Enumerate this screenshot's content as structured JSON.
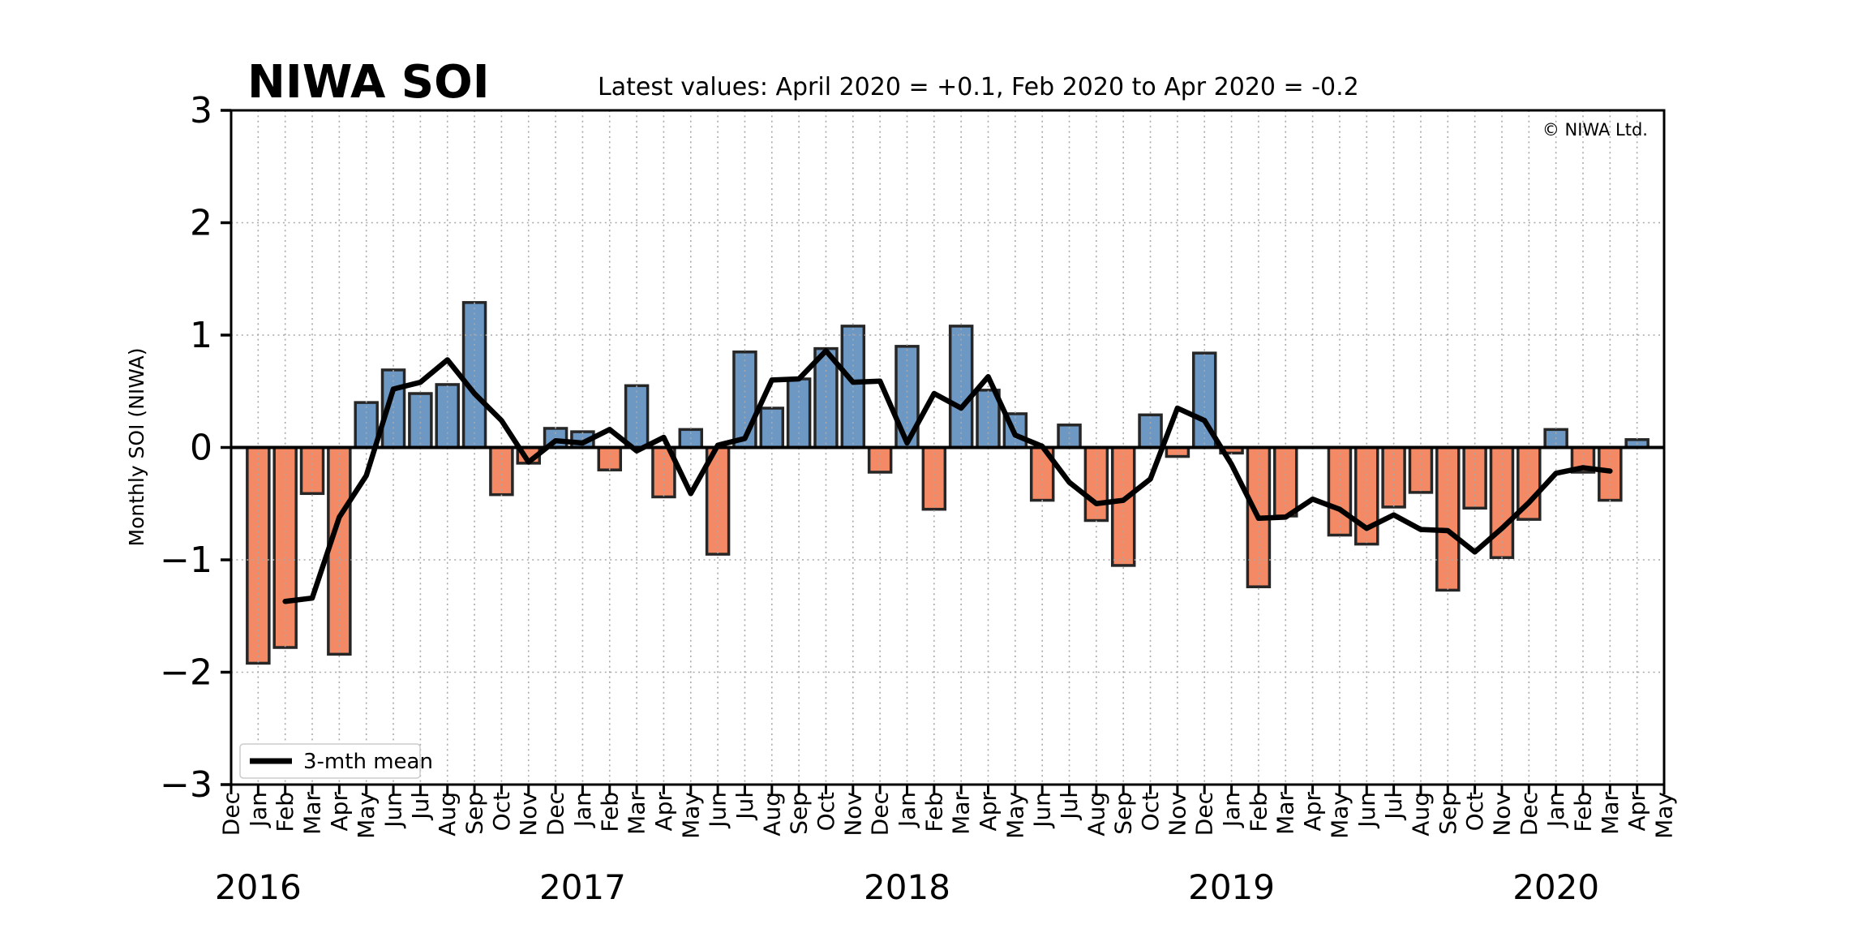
{
  "chart_data": {
    "type": "bar+line",
    "title": "NIWA SOI",
    "subtitle": "Latest values: April 2020 = +0.1, Feb 2020 to Apr 2020 = -0.2",
    "copyright": "© NIWA Ltd.",
    "ylabel": "Monthly SOI (NIWA)",
    "ylim": [
      -3,
      3
    ],
    "grid": "dotted",
    "grid_color": "#a8a8a8",
    "legend": {
      "label": "3-mth mean",
      "position": "bottom-left"
    },
    "yticks": [
      {
        "value": 3,
        "label": "3"
      },
      {
        "value": 2,
        "label": "2"
      },
      {
        "value": 1,
        "label": "1"
      },
      {
        "value": 0,
        "label": "0"
      },
      {
        "value": -1,
        "label": "−1"
      },
      {
        "value": -2,
        "label": "−2"
      },
      {
        "value": -3,
        "label": "−3"
      }
    ],
    "x_months": [
      "Dec",
      "Jan",
      "Feb",
      "Mar",
      "Apr",
      "May",
      "Jun",
      "Jul",
      "Aug",
      "Sep",
      "Oct",
      "Nov",
      "Dec",
      "Jan",
      "Feb",
      "Mar",
      "Apr",
      "May",
      "Jun",
      "Jul",
      "Aug",
      "Sep",
      "Oct",
      "Nov",
      "Dec",
      "Jan",
      "Feb",
      "Mar",
      "Apr",
      "May",
      "Jun",
      "Jul",
      "Aug",
      "Sep",
      "Oct",
      "Nov",
      "Dec",
      "Jan",
      "Feb",
      "Mar",
      "Apr",
      "May",
      "Jun",
      "Jul",
      "Aug",
      "Sep",
      "Oct",
      "Nov",
      "Dec",
      "Jan",
      "Feb",
      "Mar",
      "Apr",
      "May"
    ],
    "x_years": [
      {
        "label": "2016",
        "month_index": 1
      },
      {
        "label": "2017",
        "month_index": 13
      },
      {
        "label": "2018",
        "month_index": 25
      },
      {
        "label": "2019",
        "month_index": 37
      },
      {
        "label": "2020",
        "month_index": 49
      }
    ],
    "bars": {
      "name": "Monthly SOI",
      "start_index": 1,
      "start_month": "Jan 2016",
      "end_month": "Apr 2020",
      "color_positive": "#6D98C4",
      "color_negative": "#F48A65",
      "edge_color": "#262626",
      "values": [
        -1.92,
        -1.78,
        -0.41,
        -1.84,
        0.4,
        0.69,
        0.48,
        0.56,
        1.29,
        -0.42,
        -0.14,
        0.17,
        0.14,
        -0.2,
        0.55,
        -0.44,
        0.16,
        -0.95,
        0.85,
        0.35,
        0.61,
        0.88,
        1.08,
        -0.22,
        0.9,
        -0.55,
        1.08,
        0.51,
        0.3,
        -0.47,
        0.2,
        -0.65,
        -1.05,
        0.29,
        -0.08,
        0.84,
        -0.05,
        -1.24,
        -0.61,
        0.0,
        -0.78,
        -0.86,
        -0.53,
        -0.4,
        -1.27,
        -0.54,
        -0.98,
        -0.64,
        0.16,
        -0.22,
        -0.47,
        0.07
      ]
    },
    "mean_line": {
      "name": "3-mth mean",
      "start_index": 2,
      "start_month": "Feb 2016",
      "end_month": "Mar 2020",
      "color": "#000000",
      "values": [
        -1.37,
        -1.34,
        -0.62,
        -0.25,
        0.52,
        0.58,
        0.78,
        0.48,
        0.24,
        -0.13,
        0.06,
        0.04,
        0.16,
        -0.03,
        0.09,
        -0.41,
        0.02,
        0.08,
        0.6,
        0.61,
        0.86,
        0.58,
        0.59,
        0.04,
        0.48,
        0.35,
        0.63,
        0.11,
        0.01,
        -0.31,
        -0.5,
        -0.47,
        -0.28,
        0.35,
        0.24,
        -0.15,
        -0.63,
        -0.62,
        -0.46,
        -0.55,
        -0.72,
        -0.6,
        -0.73,
        -0.74,
        -0.93,
        -0.72,
        -0.49,
        -0.23,
        -0.18,
        -0.21
      ]
    }
  }
}
